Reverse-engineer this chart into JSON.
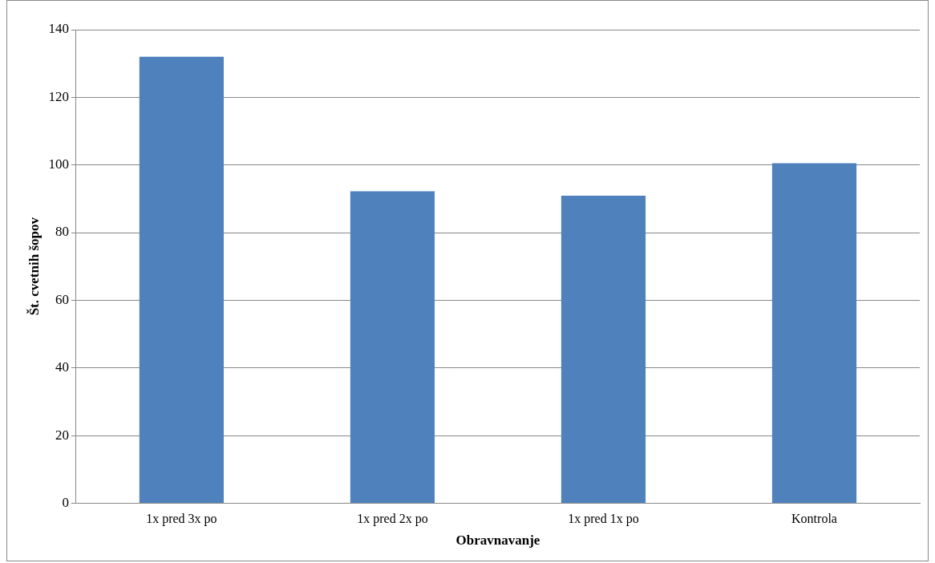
{
  "chart_data": {
    "type": "bar",
    "xlabel": "Obravnavanje",
    "ylabel": "Št. cvetnih šopov",
    "categories": [
      "1x pred 3x po",
      "1x pred 2x po",
      "1x pred 1x po",
      "Kontrola"
    ],
    "values": [
      132,
      92.2,
      90.9,
      100.5
    ],
    "color": "#4f81bd",
    "ylim": [
      0,
      140
    ],
    "yticks": [
      0,
      20,
      40,
      60,
      80,
      100,
      120,
      140
    ],
    "grid": "y",
    "legend": false
  }
}
